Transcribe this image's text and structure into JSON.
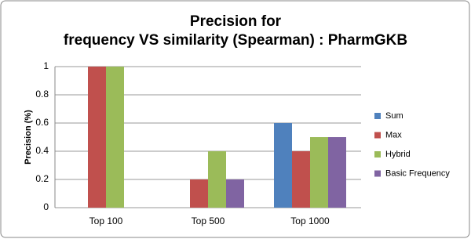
{
  "chart_data": {
    "type": "bar",
    "title": [
      "Precision for",
      "frequency VS similarity (Spearman) : PharmGKB"
    ],
    "y_label": "Precision (%)",
    "categories": [
      "Top 100",
      "Top 500",
      "Top 1000"
    ],
    "series": [
      {
        "name": "Sum",
        "color": "#4f81bd",
        "values": [
          0,
          0,
          0.6
        ]
      },
      {
        "name": "Max",
        "color": "#c0504d",
        "values": [
          1,
          0.2,
          0.4
        ]
      },
      {
        "name": "Hybrid",
        "color": "#9bbb59",
        "values": [
          1,
          0.4,
          0.5
        ]
      },
      {
        "name": "Basic Frequency",
        "color": "#8064a2",
        "values": [
          0,
          0.2,
          0.5
        ]
      }
    ],
    "ylim": [
      0,
      1
    ],
    "yticks": [
      0,
      0.2,
      0.4,
      0.6,
      0.8,
      1
    ],
    "grid": true,
    "legend": "right"
  }
}
